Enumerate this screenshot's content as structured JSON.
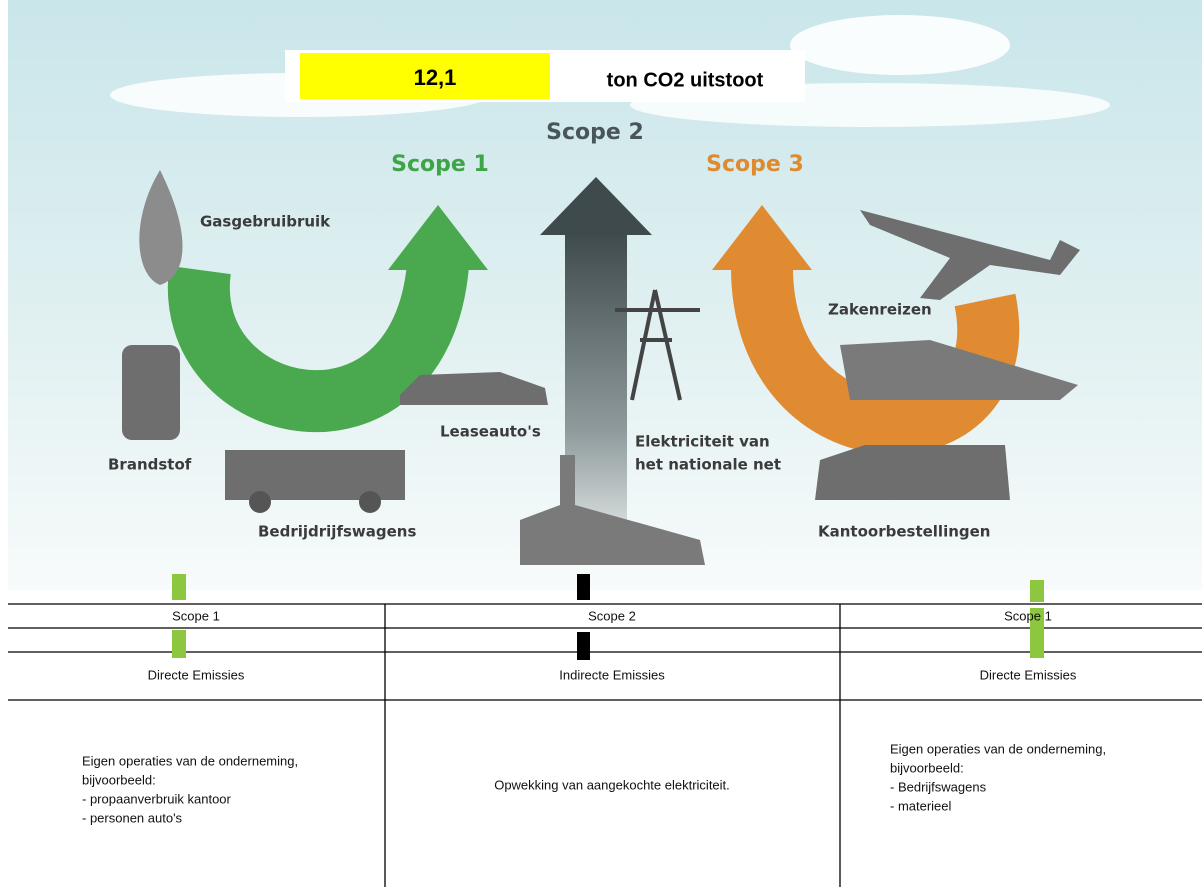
{
  "banner": {
    "value": "12,1",
    "unit": "ton CO2 uitstoot"
  },
  "diagram": {
    "scope1": "Scope 1",
    "scope2": "Scope 2",
    "scope3": "Scope 3",
    "labels": [
      "Gasgebruibruik",
      "Brandstof",
      "Bedrijdrijfswagens",
      "Leaseauto's",
      "Elektriciteit van",
      "het nationale net",
      "Zakenreizen",
      "Kantoorbestellingen"
    ]
  },
  "table": {
    "headers": [
      "Scope 1",
      "Scope 2",
      "Scope 1"
    ],
    "types": [
      "Directe Emissies",
      "Indirecte Emissies",
      "Directe Emissies"
    ],
    "descriptions": [
      [
        "Eigen operaties van de onderneming,",
        "bijvoorbeeld:",
        "- propaanverbruik kantoor",
        "- personen auto's"
      ],
      [
        "Opwekking van aangekochte elektriciteit."
      ],
      [
        "Eigen operaties van de onderneming,",
        "bijvoorbeeld:",
        "- Bedrijfswagens",
        "- materieel"
      ]
    ]
  }
}
